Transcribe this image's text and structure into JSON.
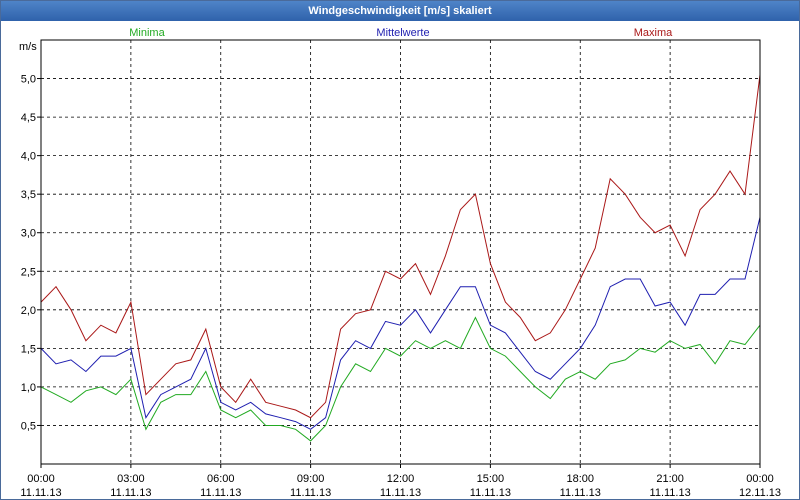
{
  "window": {
    "title": "Windgeschwindigkeit [m/s] skaliert"
  },
  "chart_data": {
    "type": "line",
    "ylabel": "m/s",
    "ylim": [
      0,
      5.5
    ],
    "xlim_hours": [
      0,
      24
    ],
    "grid": true,
    "legend_placement": "top",
    "y_ticks": [
      "0,5",
      "1,0",
      "1,5",
      "2,0",
      "2,5",
      "3,0",
      "3,5",
      "4,0",
      "4,5",
      "5,0"
    ],
    "y_tick_values": [
      0.5,
      1.0,
      1.5,
      2.0,
      2.5,
      3.0,
      3.5,
      4.0,
      4.5,
      5.0
    ],
    "x_ticks": [
      {
        "time": "00:00",
        "date": "11.11.13",
        "hour": 0
      },
      {
        "time": "03:00",
        "date": "11.11.13",
        "hour": 3
      },
      {
        "time": "06:00",
        "date": "11.11.13",
        "hour": 6
      },
      {
        "time": "09:00",
        "date": "11.11.13",
        "hour": 9
      },
      {
        "time": "12:00",
        "date": "11.11.13",
        "hour": 12
      },
      {
        "time": "15:00",
        "date": "11.11.13",
        "hour": 15
      },
      {
        "time": "18:00",
        "date": "11.11.13",
        "hour": 18
      },
      {
        "time": "21:00",
        "date": "11.11.13",
        "hour": 21
      },
      {
        "time": "00:00",
        "date": "12.11.13",
        "hour": 24
      }
    ],
    "series": [
      {
        "name": "Minima",
        "color": "#22aa22",
        "legend_pos": "left",
        "x": [
          0,
          0.5,
          1,
          1.5,
          2,
          2.5,
          3,
          3.5,
          4,
          4.5,
          5,
          5.5,
          6,
          6.5,
          7,
          7.5,
          8,
          8.5,
          9,
          9.5,
          10,
          10.5,
          11,
          11.5,
          12,
          12.5,
          13,
          13.5,
          14,
          14.5,
          15,
          15.5,
          16,
          16.5,
          17,
          17.5,
          18,
          18.5,
          19,
          19.5,
          20,
          20.5,
          21,
          21.5,
          22,
          22.5,
          23,
          23.5,
          24
        ],
        "values": [
          1.0,
          0.9,
          0.8,
          0.95,
          1.0,
          0.9,
          1.1,
          0.45,
          0.8,
          0.9,
          0.9,
          1.2,
          0.7,
          0.6,
          0.7,
          0.5,
          0.5,
          0.45,
          0.3,
          0.5,
          1.0,
          1.3,
          1.2,
          1.5,
          1.4,
          1.6,
          1.5,
          1.6,
          1.5,
          1.9,
          1.5,
          1.4,
          1.2,
          1.0,
          0.85,
          1.1,
          1.2,
          1.1,
          1.3,
          1.35,
          1.5,
          1.45,
          1.6,
          1.5,
          1.55,
          1.3,
          1.6,
          1.55,
          1.8
        ]
      },
      {
        "name": "Mittelwerte",
        "color": "#1f1fb0",
        "legend_pos": "center",
        "x": [
          0,
          0.5,
          1,
          1.5,
          2,
          2.5,
          3,
          3.5,
          4,
          4.5,
          5,
          5.5,
          6,
          6.5,
          7,
          7.5,
          8,
          8.5,
          9,
          9.5,
          10,
          10.5,
          11,
          11.5,
          12,
          12.5,
          13,
          13.5,
          14,
          14.5,
          15,
          15.5,
          16,
          16.5,
          17,
          17.5,
          18,
          18.5,
          19,
          19.5,
          20,
          20.5,
          21,
          21.5,
          22,
          22.5,
          23,
          23.5,
          24
        ],
        "values": [
          1.5,
          1.3,
          1.35,
          1.2,
          1.4,
          1.4,
          1.5,
          0.6,
          0.9,
          1.0,
          1.1,
          1.5,
          0.8,
          0.7,
          0.8,
          0.65,
          0.6,
          0.55,
          0.45,
          0.6,
          1.35,
          1.6,
          1.5,
          1.85,
          1.8,
          2.0,
          1.7,
          2.0,
          2.3,
          2.3,
          1.8,
          1.7,
          1.45,
          1.2,
          1.1,
          1.3,
          1.5,
          1.8,
          2.3,
          2.4,
          2.4,
          2.05,
          2.1,
          1.8,
          2.2,
          2.2,
          2.4,
          2.4,
          3.2
        ]
      },
      {
        "name": "Maxima",
        "color": "#aa1818",
        "legend_pos": "right",
        "x": [
          0,
          0.5,
          1,
          1.5,
          2,
          2.5,
          3,
          3.5,
          4,
          4.5,
          5,
          5.5,
          6,
          6.5,
          7,
          7.5,
          8,
          8.5,
          9,
          9.5,
          10,
          10.5,
          11,
          11.5,
          12,
          12.5,
          13,
          13.5,
          14,
          14.5,
          15,
          15.5,
          16,
          16.5,
          17,
          17.5,
          18,
          18.5,
          19,
          19.5,
          20,
          20.5,
          21,
          21.5,
          22,
          22.5,
          23,
          23.5,
          24
        ],
        "values": [
          2.1,
          2.3,
          2.0,
          1.6,
          1.8,
          1.7,
          2.1,
          0.9,
          1.1,
          1.3,
          1.35,
          1.75,
          1.0,
          0.8,
          1.1,
          0.8,
          0.75,
          0.7,
          0.6,
          0.8,
          1.75,
          1.95,
          2.0,
          2.5,
          2.4,
          2.6,
          2.2,
          2.7,
          3.3,
          3.5,
          2.6,
          2.1,
          1.9,
          1.6,
          1.7,
          2.0,
          2.4,
          2.8,
          3.7,
          3.5,
          3.2,
          3.0,
          3.1,
          2.7,
          3.3,
          3.5,
          3.8,
          3.5,
          5.05
        ]
      }
    ]
  }
}
